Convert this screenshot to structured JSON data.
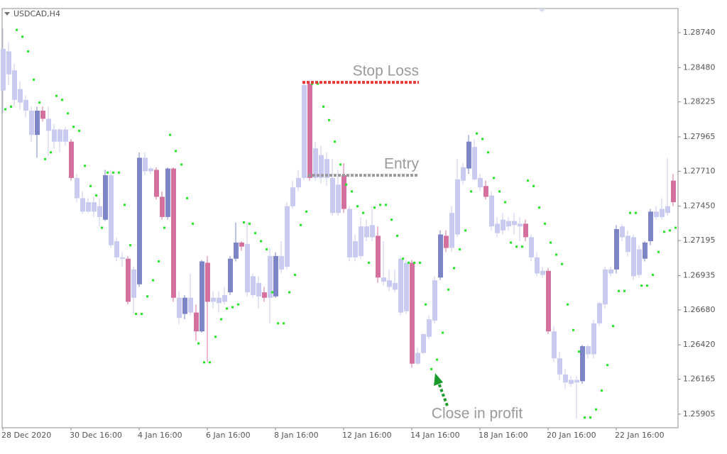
{
  "chart_data": {
    "type": "candlestick",
    "symbol": "USDCAD,H4",
    "categories": [
      "28 Dec 2020",
      null,
      null,
      null,
      null,
      null,
      null,
      null,
      null,
      null,
      null,
      null,
      "30 Dec 16:00",
      null,
      null,
      null,
      null,
      null,
      null,
      null,
      null,
      null,
      null,
      null,
      "4 Jan 16:00",
      null,
      null,
      null,
      null,
      null,
      null,
      null,
      null,
      null,
      null,
      null,
      "6 Jan 16:00",
      null,
      null,
      null,
      null,
      null,
      null,
      null,
      null,
      null,
      null,
      null,
      "8 Jan 16:00",
      null,
      null,
      null,
      null,
      null,
      null,
      null,
      null,
      null,
      null,
      null,
      "12 Jan 16:00",
      null,
      null,
      null,
      null,
      null,
      null,
      null,
      null,
      null,
      null,
      null,
      "14 Jan 16:00",
      null,
      null,
      null,
      null,
      null,
      null,
      null,
      null,
      null,
      null,
      null,
      "18 Jan 16:00",
      null,
      null,
      null,
      null,
      null,
      null,
      null,
      null,
      null,
      null,
      null,
      "20 Jan 16:00",
      null,
      null,
      null,
      null,
      null,
      null,
      null,
      null,
      null,
      null,
      null,
      "22 Jan 16:00",
      null,
      null,
      null,
      null,
      null,
      null,
      null,
      null,
      null,
      null
    ],
    "open": [
      1.2831,
      1.286,
      1.2846,
      1.2832,
      1.2824,
      1.2816,
      1.2798,
      1.2816,
      1.281,
      1.2802,
      1.2793,
      1.2802,
      1.2793,
      1.2766,
      1.2751,
      1.2741,
      1.2748,
      1.2745,
      1.2735,
      1.2768,
      1.2719,
      1.2707,
      1.2706,
      1.2677,
      1.2687,
      1.2781,
      1.2773,
      1.2772,
      1.2752,
      1.2737,
      1.2773,
      1.2677,
      1.2665,
      1.2677,
      1.2666,
      1.2652,
      1.2703,
      1.2674,
      1.2677,
      1.2674,
      1.2681,
      1.2706,
      1.2718,
      1.2717,
      1.2693,
      1.2688,
      1.2681,
      1.2677,
      1.2678,
      1.2708,
      1.27,
      1.2745,
      1.2759,
      1.2766,
      1.2836,
      1.2766,
      1.2783,
      1.278,
      1.2766,
      1.2761,
      1.2768,
      1.2743,
      1.2707,
      1.2708,
      1.273,
      1.2722,
      1.2723,
      1.2692,
      1.269,
      1.2688,
      1.2666,
      1.2703,
      1.2703,
      1.2628,
      1.2636,
      1.2648,
      1.266,
      1.2692,
      1.2723,
      1.2714,
      1.2724,
      1.2764,
      1.2773,
      1.2789,
      1.2766,
      1.276,
      1.2753,
      1.2732,
      1.2727,
      1.2734,
      1.2734,
      1.2732,
      1.2732,
      1.2722,
      1.2707,
      1.2697,
      1.2697,
      1.2652,
      1.2632,
      1.262,
      1.2616,
      1.2616,
      1.2615,
      1.2641,
      1.2635,
      1.2658,
      1.2672,
      1.2698,
      1.2698,
      1.273,
      1.2723,
      1.2722,
      1.2694,
      1.2706,
      1.2719,
      1.2741,
      1.2737,
      1.274,
      1.2764
    ],
    "high": [
      1.2877,
      1.2867,
      1.2851,
      1.2838,
      1.2827,
      1.2819,
      1.2819,
      1.2819,
      1.2819,
      1.2806,
      1.2803,
      1.2804,
      1.2795,
      1.2769,
      1.2756,
      1.2751,
      1.2752,
      1.2751,
      1.2772,
      1.2772,
      1.2722,
      1.2711,
      1.2708,
      1.27,
      1.2785,
      1.2785,
      1.2774,
      1.2774,
      1.2756,
      1.2774,
      1.2774,
      1.2682,
      1.2679,
      1.2695,
      1.2672,
      1.2705,
      1.2708,
      1.2682,
      1.2682,
      1.2685,
      1.2708,
      1.2733,
      1.2719,
      1.2733,
      1.2695,
      1.2693,
      1.2685,
      1.2714,
      1.2711,
      1.2719,
      1.2748,
      1.2764,
      1.2772,
      1.2838,
      1.2838,
      1.2793,
      1.279,
      1.2785,
      1.278,
      1.2772,
      1.2777,
      1.2745,
      1.2724,
      1.2737,
      1.2735,
      1.2745,
      1.273,
      1.2719,
      1.2698,
      1.2698,
      1.2708,
      1.2705,
      1.2705,
      1.264,
      1.265,
      1.2664,
      1.2693,
      1.2727,
      1.2727,
      1.2745,
      1.278,
      1.2777,
      1.2798,
      1.2795,
      1.2769,
      1.2764,
      1.2756,
      1.2737,
      1.274,
      1.2737,
      1.274,
      1.2737,
      1.2735,
      1.2724,
      1.2711,
      1.27,
      1.2699,
      1.2656,
      1.2637,
      1.2624,
      1.2619,
      1.2619,
      1.2642,
      1.2642,
      1.2661,
      1.2674,
      1.27,
      1.27,
      1.2731,
      1.2732,
      1.2727,
      1.2724,
      1.2716,
      1.2719,
      1.2743,
      1.2745,
      1.2751,
      1.2781,
      1.2769
    ],
    "low": [
      1.2814,
      1.2835,
      1.2819,
      1.2817,
      1.2811,
      1.2793,
      1.2781,
      1.2808,
      1.2782,
      1.2788,
      1.2785,
      1.279,
      1.2764,
      1.2748,
      1.2739,
      1.274,
      1.2737,
      1.273,
      1.2734,
      1.2714,
      1.2704,
      1.27,
      1.2672,
      1.2665,
      1.2685,
      1.2768,
      1.2769,
      1.275,
      1.2735,
      1.2735,
      1.2674,
      1.2657,
      1.2661,
      1.2664,
      1.2645,
      1.2651,
      1.2629,
      1.2669,
      1.2666,
      1.2672,
      1.2679,
      1.2704,
      1.2712,
      1.2678,
      1.2677,
      1.2669,
      1.2674,
      1.2658,
      1.2677,
      1.2695,
      1.2698,
      1.2743,
      1.2756,
      1.2764,
      1.2764,
      1.2764,
      1.2762,
      1.276,
      1.2738,
      1.2738,
      1.274,
      1.2704,
      1.2704,
      1.2706,
      1.2719,
      1.2719,
      1.2688,
      1.2686,
      1.2682,
      1.2681,
      1.2664,
      1.2665,
      1.2625,
      1.2627,
      1.2635,
      1.2646,
      1.2658,
      1.269,
      1.2711,
      1.2711,
      1.2722,
      1.2761,
      1.2769,
      1.2764,
      1.2756,
      1.275,
      1.2727,
      1.2722,
      1.2724,
      1.2727,
      1.2724,
      1.2719,
      1.2719,
      1.2704,
      1.2693,
      1.2692,
      1.265,
      1.2629,
      1.2616,
      1.2609,
      1.2611,
      1.2587,
      1.2613,
      1.2632,
      1.2632,
      1.2656,
      1.2669,
      1.2693,
      1.2695,
      1.2719,
      1.2708,
      1.269,
      1.2692,
      1.2704,
      1.2716,
      1.2735,
      1.2735,
      1.2738,
      1.2745
    ],
    "close": [
      1.2862,
      1.2843,
      1.2824,
      1.2822,
      1.2816,
      1.2798,
      1.2816,
      1.281,
      1.2801,
      1.2793,
      1.2802,
      1.2793,
      1.2766,
      1.2751,
      1.2741,
      1.2748,
      1.2741,
      1.2737,
      1.2768,
      1.2716,
      1.2707,
      1.2706,
      1.2674,
      1.2698,
      1.2781,
      1.2771,
      1.2771,
      1.2752,
      1.2737,
      1.2773,
      1.2677,
      1.2662,
      1.2677,
      1.2666,
      1.2652,
      1.2704,
      1.2674,
      1.2677,
      1.2673,
      1.2679,
      1.2706,
      1.2718,
      1.2715,
      1.2681,
      1.2679,
      1.2678,
      1.2677,
      1.2708,
      1.2708,
      1.2698,
      1.2745,
      1.2759,
      1.2766,
      1.2835,
      1.2766,
      1.2788,
      1.2766,
      1.2766,
      1.274,
      1.274,
      1.2743,
      1.2707,
      1.2719,
      1.273,
      1.2722,
      1.2731,
      1.2692,
      1.2689,
      1.2685,
      1.2683,
      1.2706,
      1.2667,
      1.2628,
      1.2636,
      1.265,
      1.2661,
      1.269,
      1.2724,
      1.2714,
      1.274,
      1.2765,
      1.2774,
      1.2793,
      1.2765,
      1.2759,
      1.2752,
      1.273,
      1.2725,
      1.2735,
      1.273,
      1.2731,
      1.273,
      1.2722,
      1.2707,
      1.2695,
      1.2694,
      1.2652,
      1.2632,
      1.262,
      1.2614,
      1.2613,
      1.2614,
      1.2641,
      1.2635,
      1.2658,
      1.2673,
      1.2698,
      1.2695,
      1.2728,
      1.2722,
      1.2711,
      1.2693,
      1.2713,
      1.2718,
      1.2741,
      1.2737,
      1.2743,
      1.2745,
      1.2748
    ],
    "colors": [
      "#c8cbef",
      "#c8cbef",
      "#c8cbef",
      "#c8cbef",
      "#c8cbef",
      "#c8cbef",
      "#7c84c6",
      "#d4709f",
      "#c8cbef",
      "#c8cbef",
      "#c8cbef",
      "#c8cbef",
      "#d4709f",
      "#c8cbef",
      "#c8cbef",
      "#c8cbef",
      "#c8cbef",
      "#c8cbef",
      "#7c84c6",
      "#c8cbef",
      "#c8cbef",
      "#c8cbef",
      "#d4709f",
      "#c8cbef",
      "#7c84c6",
      "#c8cbef",
      "#c8cbef",
      "#d4709f",
      "#d4709f",
      "#7c84c6",
      "#d4709f",
      "#c8cbef",
      "#7c84c6",
      "#c8cbef",
      "#d4709f",
      "#7c84c6",
      "#d4709f",
      "#c8cbef",
      "#c8cbef",
      "#c8cbef",
      "#7c84c6",
      "#7c84c6",
      "#d4709f",
      "#c8cbef",
      "#c8cbef",
      "#c8cbef",
      "#d4709f",
      "#c8cbef",
      "#7c84c6",
      "#c8cbef",
      "#c8cbef",
      "#c8cbef",
      "#c8cbef",
      "#c8cbef",
      "#d4709f",
      "#c8cbef",
      "#c8cbef",
      "#c8cbef",
      "#c8cbef",
      "#c8cbef",
      "#d4709f",
      "#c8cbef",
      "#c8cbef",
      "#c8cbef",
      "#c8cbef",
      "#c8cbef",
      "#d4709f",
      "#c8cbef",
      "#c8cbef",
      "#c8cbef",
      "#c8cbef",
      "#c8cbef",
      "#d4709f",
      "#c8cbef",
      "#c8cbef",
      "#c8cbef",
      "#c8cbef",
      "#7c84c6",
      "#d4709f",
      "#c8cbef",
      "#c8cbef",
      "#c8cbef",
      "#7c84c6",
      "#c8cbef",
      "#c8cbef",
      "#d4709f",
      "#c8cbef",
      "#c8cbef",
      "#c8cbef",
      "#c8cbef",
      "#c8cbef",
      "#c8cbef",
      "#d4709f",
      "#c8cbef",
      "#c8cbef",
      "#c8cbef",
      "#d4709f",
      "#c8cbef",
      "#c8cbef",
      "#c8cbef",
      "#c8cbef",
      "#c8cbef",
      "#7c84c6",
      "#c8cbef",
      "#c8cbef",
      "#c8cbef",
      "#c8cbef",
      "#c8cbef",
      "#7c84c6",
      "#c8cbef",
      "#c8cbef",
      "#c8cbef",
      "#c8cbef",
      "#7c84c6",
      "#7c84c6",
      "#c8cbef",
      "#c8cbef",
      "#c8cbef",
      "#d4709f"
    ],
    "sar": {
      "color": "#1ee81e",
      "values": [
        1.2817,
        1.2819,
        1.2876,
        1.2871,
        1.286,
        1.2839,
        1.2822,
        1.278,
        1.2785,
        1.2827,
        1.2824,
        1.2814,
        1.2804,
        1.2801,
        1.2775,
        1.276,
        1.2753,
        1.2729,
        1.277,
        1.277,
        1.277,
        1.2746,
        1.2716,
        1.2665,
        1.2665,
        1.2678,
        1.269,
        1.2704,
        1.2729,
        1.2798,
        1.2786,
        1.2776,
        1.2751,
        1.2732,
        1.2643,
        1.2629,
        1.2629,
        1.2648,
        1.2661,
        1.2669,
        1.267,
        1.2672,
        1.2733,
        1.2732,
        1.2725,
        1.2719,
        1.2713,
        1.2681,
        1.2658,
        1.2658,
        1.2681,
        1.2694,
        1.2731,
        1.2741,
        1.2836,
        1.2836,
        1.2819,
        1.2809,
        1.2793,
        1.2776,
        1.2761,
        1.2756,
        1.2745,
        1.274,
        1.2703,
        1.2744,
        1.2746,
        1.2746,
        1.2735,
        1.2723,
        1.2706,
        1.2703,
        1.2703,
        1.2703,
        1.2672,
        1.2624,
        1.2631,
        1.2651,
        1.2683,
        1.2699,
        1.2713,
        1.2727,
        1.2756,
        1.2799,
        1.2795,
        1.2785,
        1.2766,
        1.2756,
        1.2748,
        1.2718,
        1.2715,
        1.2715,
        1.2764,
        1.276,
        1.2744,
        1.2732,
        1.2718,
        1.2709,
        1.2702,
        1.2672,
        1.2653,
        1.2637,
        1.2588,
        1.2588,
        1.2594,
        1.2608,
        1.2627,
        1.2656,
        1.2682,
        1.2682,
        1.274,
        1.274,
        1.2686,
        1.2686,
        1.2694,
        1.2711,
        1.2726,
        1.2727,
        1.2729
      ]
    },
    "ylim": [
      1.25804,
      1.28919
    ],
    "yticks": [
      {
        "value": 1.2874,
        "label": "1.28740"
      },
      {
        "value": 1.2848,
        "label": "1.28480"
      },
      1.28225,
      1.27965,
      {
        "value": 1.2771,
        "label": "1.27710"
      },
      {
        "value": 1.2745,
        "label": "1.27450"
      },
      1.27195,
      1.26935,
      {
        "value": 1.2668,
        "label": "1.26680"
      },
      {
        "value": 1.2642,
        "label": "1.26420"
      },
      1.26165,
      1.25905
    ],
    "levels": [
      {
        "label": "Stop Loss",
        "value": 1.2837,
        "color": "#e53935"
      },
      {
        "label": "Entry",
        "value": 1.2768,
        "color": "#9a9a9a"
      }
    ],
    "annotation": "Close in profit"
  }
}
